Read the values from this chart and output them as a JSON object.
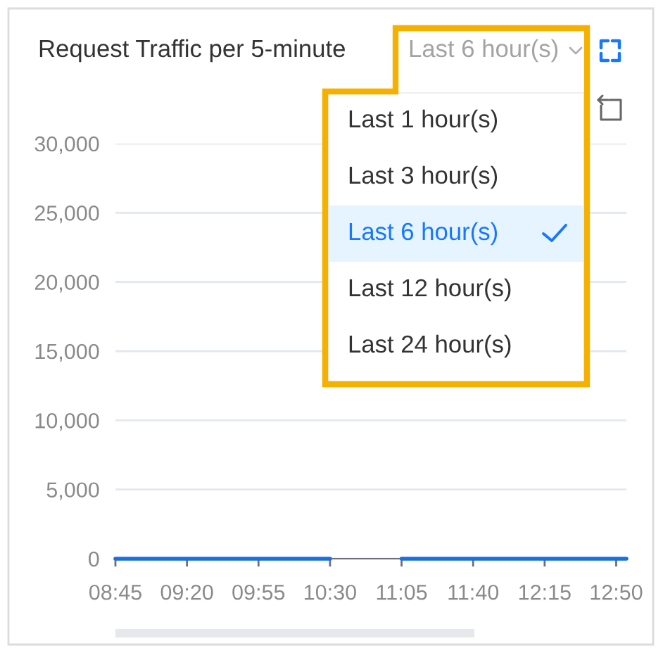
{
  "chart_data": {
    "type": "line",
    "title": "Request Traffic per 5-minute",
    "categories": [
      "08:45",
      null,
      null,
      null,
      null,
      null,
      null,
      "09:20",
      null,
      null,
      null,
      null,
      null,
      null,
      "09:55",
      null,
      null,
      null,
      null,
      null,
      null,
      "10:30",
      null,
      null,
      null,
      null,
      null,
      null,
      "11:05",
      null,
      null,
      null,
      null,
      null,
      null,
      "11:40",
      null,
      null,
      null,
      null,
      null,
      null,
      "12:15",
      null,
      null,
      null,
      null,
      null,
      null,
      "12:50",
      null
    ],
    "values": [
      0,
      0,
      0,
      0,
      0,
      0,
      0,
      0,
      0,
      0,
      0,
      0,
      0,
      0,
      0,
      0,
      0,
      0,
      0,
      0,
      0,
      0,
      null,
      null,
      null,
      null,
      null,
      null,
      0,
      0,
      0,
      0,
      0,
      0,
      0,
      0,
      0,
      0,
      0,
      0,
      0,
      0,
      0,
      0,
      0,
      0,
      0,
      0,
      0,
      0,
      0
    ],
    "color": "#1a6fe0",
    "ylim": [
      0,
      30000
    ],
    "yticks": [
      0,
      {
        "value": 5000,
        "label": "5,000"
      },
      {
        "value": 10000,
        "label": "10,000"
      },
      {
        "value": 15000,
        "label": "15,000"
      },
      {
        "value": 20000,
        "label": "20,000"
      },
      {
        "value": 25000,
        "label": "25,000"
      },
      {
        "value": 30000,
        "label": "30,000"
      }
    ],
    "grid": "y",
    "annotations": [
      "Last 6 hour(s)",
      "Last 1 hour(s)",
      "Last 3 hour(s)",
      "Last 6 hour(s)",
      "Last 12 hour(s)",
      "Last 24 hour(s)"
    ]
  }
}
